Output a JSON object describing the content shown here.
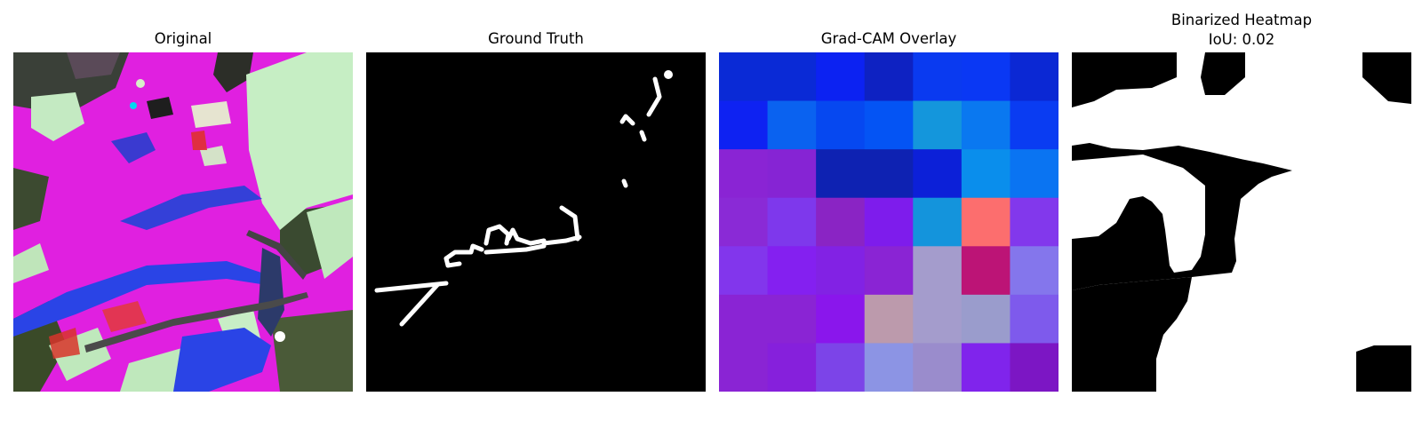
{
  "panels": {
    "original": {
      "title": "Original"
    },
    "ground_truth": {
      "title": "Ground Truth"
    },
    "gradcam": {
      "title": "Grad-CAM Overlay",
      "grid_colors": [
        [
          "#0a2ad6",
          "#0a2ad6",
          "#0c22f2",
          "#0e22c2",
          "#0a3af0",
          "#0a38f4",
          "#0b28d4"
        ],
        [
          "#0e22f2",
          "#0a62f0",
          "#0648f0",
          "#0454f4",
          "#1496dc",
          "#0a78f0",
          "#0a3cf2"
        ],
        [
          "#8a24d4",
          "#8624d4",
          "#0e22b2",
          "#0e22b2",
          "#0c20d8",
          "#0a8eec",
          "#0a74f2"
        ],
        [
          "#8a2ad6",
          "#7e38ec",
          "#8a24c4",
          "#7e1cec",
          "#1494dc",
          "#fc6e6e",
          "#8238ec"
        ],
        [
          "#8236ec",
          "#8420f0",
          "#8222e4",
          "#8a24d4",
          "#a49ccc",
          "#bc1476",
          "#8476ec"
        ],
        [
          "#8a24d4",
          "#8a24d4",
          "#8a16ec",
          "#bc9aac",
          "#a49ccc",
          "#9a9ccc",
          "#7e5aec"
        ],
        [
          "#8a24d4",
          "#8620dc",
          "#7c44e8",
          "#8c94e4",
          "#9a8ccc",
          "#8024ec",
          "#7c16c4"
        ]
      ]
    },
    "binarized": {
      "title_line1": "Binarized Heatmap",
      "title_line2": "IoU: 0.02"
    }
  }
}
